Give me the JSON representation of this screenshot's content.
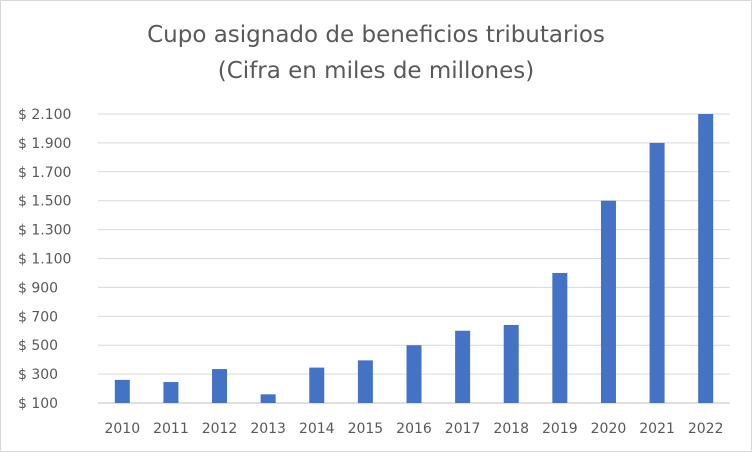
{
  "chart_data": {
    "type": "bar",
    "title": "Cupo asignado de beneficios tributarios",
    "subtitle": "(Cifra en miles de millones)",
    "categories": [
      "2010",
      "2011",
      "2012",
      "2013",
      "2014",
      "2015",
      "2016",
      "2017",
      "2018",
      "2019",
      "2020",
      "2021",
      "2022"
    ],
    "values": [
      260,
      245,
      335,
      160,
      345,
      395,
      500,
      600,
      640,
      1000,
      1500,
      1900,
      2100
    ],
    "y_ticks": [
      100,
      300,
      500,
      700,
      900,
      1100,
      1300,
      1500,
      1700,
      1900,
      2100
    ],
    "y_tick_labels": [
      "$ 100",
      "$ 300",
      "$ 500",
      "$ 700",
      "$ 900",
      "$ 1.100",
      "$ 1.300",
      "$ 1.500",
      "$ 1.700",
      "$ 1.900",
      "$ 2.100"
    ],
    "ylim": [
      100,
      2100
    ],
    "xlabel": "",
    "ylabel": "",
    "grid": true,
    "legend": "none",
    "bar_color": "#4472c4",
    "grid_color": "#d9d9d9"
  }
}
